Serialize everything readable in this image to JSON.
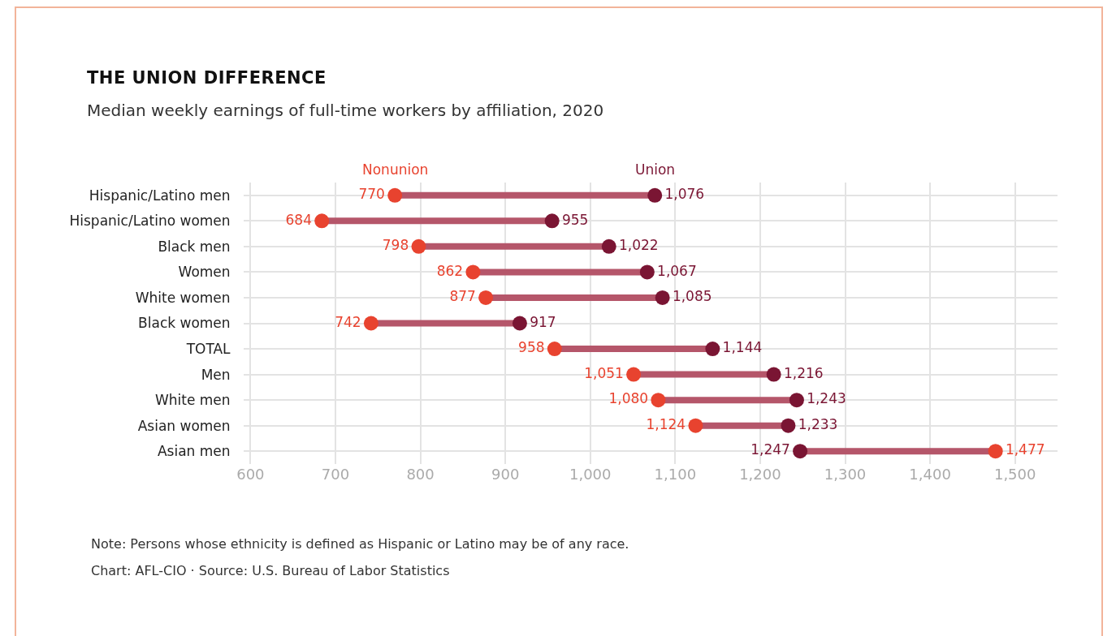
{
  "chart_data": {
    "type": "scatter",
    "title": "THE UNION DIFFERENCE",
    "subtitle": "Median weekly earnings of full-time workers by affiliation, 2020",
    "orientation": "horizontal",
    "categories": [
      "Hispanic/Latino men",
      "Hispanic/Latino women",
      "Black men",
      "Women",
      "White women",
      "Black women",
      "TOTAL",
      "Men",
      "White men",
      "Asian women",
      "Asian men"
    ],
    "series": [
      {
        "name": "Nonunion",
        "color": "#e8432f",
        "values": [
          770,
          684,
          798,
          862,
          877,
          742,
          958,
          1051,
          1080,
          1124,
          1477
        ],
        "value_labels": [
          "770",
          "684",
          "798",
          "862",
          "877",
          "742",
          "958",
          "1,051",
          "1,080",
          "1,124",
          "1,477"
        ]
      },
      {
        "name": "Union",
        "color": "#7a1533",
        "values": [
          1076,
          955,
          1022,
          1067,
          1085,
          917,
          1144,
          1216,
          1243,
          1233,
          1247
        ],
        "value_labels": [
          "1,076",
          "955",
          "1,022",
          "1,067",
          "1,085",
          "917",
          "1,144",
          "1,216",
          "1,243",
          "1,233",
          "1,247"
        ]
      }
    ],
    "xlim": [
      592,
      1550
    ],
    "xticks": [
      600,
      700,
      800,
      900,
      {
        "value": 1000,
        "label": "1,000"
      },
      {
        "value": 1100,
        "label": "1,100"
      },
      {
        "value": 1200,
        "label": "1,200"
      },
      {
        "value": 1300,
        "label": "1,300"
      },
      {
        "value": 1400,
        "label": "1,400"
      },
      {
        "value": 1500,
        "label": "1,500"
      }
    ],
    "grid": true,
    "legend": false,
    "marker": "circle",
    "annotations": [
      "Note: Persons whose ethnicity is defined as Hispanic or Latino may be of any race.",
      "Chart: AFL-CIO · Source: U.S. Bureau of Labor Statistics"
    ]
  }
}
